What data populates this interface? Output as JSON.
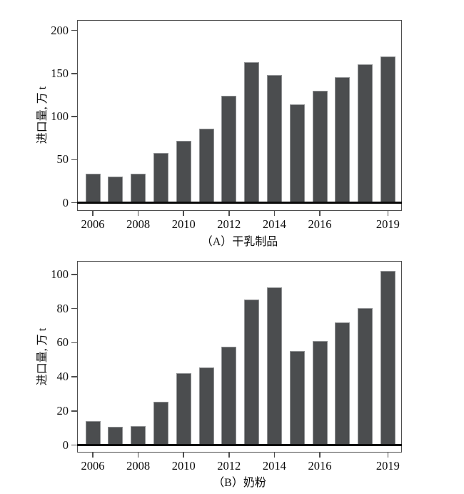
{
  "figure": {
    "background": "#ffffff",
    "text_color": "#0d0d0d"
  },
  "colors": {
    "bar_fill": "#4b4d4f",
    "bar_edge": "#8f9193",
    "plot_frame": "#4e4e4e",
    "zero_line": "#0b0b0b"
  },
  "chart_data": [
    {
      "id": "A",
      "type": "bar",
      "title": "（A）干乳制品",
      "ylabel": "进口量, 万 t",
      "xlabel": "",
      "categories": [
        2006,
        2007,
        2008,
        2009,
        2010,
        2011,
        2012,
        2013,
        2014,
        2015,
        2016,
        2017,
        2018,
        2019
      ],
      "values": [
        34,
        30,
        34,
        58,
        72,
        86,
        124,
        163,
        148,
        114,
        130,
        146,
        161,
        170
      ],
      "ylim": [
        0,
        212
      ],
      "yticks": [
        0,
        50,
        100,
        150,
        200
      ],
      "xtick_labels": [
        "2006",
        "2008",
        "2010",
        "2012",
        "2014",
        "2016",
        "2019"
      ],
      "grid": "off",
      "legend": "none"
    },
    {
      "id": "B",
      "type": "bar",
      "title": "（B）奶粉",
      "ylabel": "进口量, 万 t",
      "xlabel": "",
      "categories": [
        2006,
        2007,
        2008,
        2009,
        2010,
        2011,
        2012,
        2013,
        2014,
        2015,
        2016,
        2017,
        2018,
        2019
      ],
      "values": [
        14,
        10.5,
        11,
        25.5,
        42,
        45.5,
        57.5,
        85.5,
        92.5,
        55,
        61,
        72,
        80.5,
        102
      ],
      "ylim": [
        0,
        108
      ],
      "yticks": [
        0,
        20,
        40,
        60,
        80,
        100
      ],
      "xtick_labels": [
        "2006",
        "2008",
        "2010",
        "2012",
        "2014",
        "2016",
        "2019"
      ],
      "grid": "off",
      "legend": "none"
    }
  ]
}
